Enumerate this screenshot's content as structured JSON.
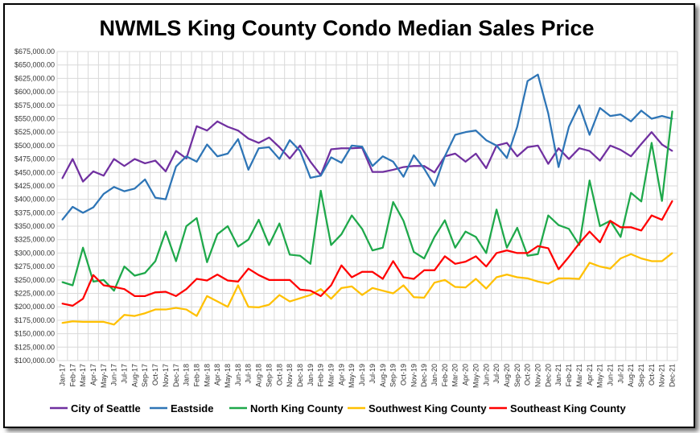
{
  "chart_data": {
    "type": "line",
    "title": "NWMLS King County Condo Median Sales Price",
    "xlabel": "",
    "ylabel": "",
    "ylim": [
      100000,
      675000
    ],
    "grid": true,
    "legend_position": "bottom",
    "y_ticks": [
      "$100,000.00",
      "$125,000.00",
      "$150,000.00",
      "$175,000.00",
      "$200,000.00",
      "$225,000.00",
      "$250,000.00",
      "$275,000.00",
      "$300,000.00",
      "$325,000.00",
      "$350,000.00",
      "$375,000.00",
      "$400,000.00",
      "$425,000.00",
      "$450,000.00",
      "$475,000.00",
      "$500,000.00",
      "$525,000.00",
      "$550,000.00",
      "$575,000.00",
      "$600,000.00",
      "$625,000.00",
      "$650,000.00",
      "$675,000.00"
    ],
    "categories": [
      "Jan-17",
      "Feb-17",
      "Mar-17",
      "Apr-17",
      "May-17",
      "Jun-17",
      "Jul-17",
      "Aug-17",
      "Sep-17",
      "Oct-17",
      "Nov-17",
      "Dec-17",
      "Jan-18",
      "Feb-18",
      "Mar-18",
      "Apr-18",
      "May-18",
      "Jun-18",
      "Jul-18",
      "Aug-18",
      "Sep-18",
      "Oct-18",
      "Nov-18",
      "Dec-18",
      "Jan-19",
      "Feb-19",
      "Mar-19",
      "Apr-19",
      "May-19",
      "Jun-19",
      "Jul-19",
      "Aug-19",
      "Sep-19",
      "Oct-19",
      "Nov-19",
      "Dec-19",
      "Jan-20",
      "Feb-20",
      "Mar-20",
      "Apr-20",
      "May-20",
      "Jun-20",
      "Jul-20",
      "Aug-20",
      "Sep-20",
      "Oct-20",
      "Nov-20",
      "Dec-20",
      "Jan-21",
      "Feb-21",
      "Mar-21",
      "Apr-21",
      "May-21",
      "Jun-21",
      "Jul-21",
      "Aug-21",
      "Sep-21",
      "Oct-21",
      "Nov-21",
      "Dec-21"
    ],
    "series": [
      {
        "name": "City of Seattle",
        "color": "#7030A0",
        "values": [
          439000,
          475000,
          433000,
          452000,
          444000,
          475000,
          462000,
          475000,
          467000,
          472000,
          452000,
          490000,
          476000,
          536000,
          528000,
          545000,
          535000,
          528000,
          513000,
          505000,
          515000,
          497000,
          476000,
          500000,
          470000,
          445000,
          493000,
          495000,
          495000,
          496000,
          451000,
          451000,
          455000,
          460000,
          462000,
          462000,
          450000,
          480000,
          485000,
          470000,
          485000,
          458000,
          500000,
          505000,
          480000,
          497000,
          500000,
          466000,
          495000,
          475000,
          495000,
          490000,
          472000,
          500000,
          492000,
          480000,
          503000,
          525000,
          502000,
          490000
        ]
      },
      {
        "name": "Eastside",
        "color": "#2E75B6",
        "values": [
          362000,
          386000,
          375000,
          385000,
          410000,
          423000,
          415000,
          420000,
          437000,
          403000,
          400000,
          461000,
          480000,
          470000,
          502000,
          480000,
          485000,
          512000,
          455000,
          495000,
          497000,
          475000,
          510000,
          490000,
          440000,
          444000,
          478000,
          468000,
          500000,
          498000,
          462000,
          480000,
          470000,
          442000,
          482000,
          457000,
          425000,
          480000,
          520000,
          525000,
          528000,
          510000,
          500000,
          477000,
          535000,
          620000,
          632000,
          560000,
          460000,
          535000,
          575000,
          520000,
          570000,
          555000,
          558000,
          545000,
          565000,
          550000,
          555000,
          550000
        ]
      },
      {
        "name": "North King County",
        "color": "#1EA84A",
        "values": [
          246000,
          240000,
          310000,
          247000,
          250000,
          230000,
          275000,
          258000,
          263000,
          285000,
          340000,
          285000,
          350000,
          365000,
          283000,
          335000,
          350000,
          312000,
          325000,
          362000,
          315000,
          355000,
          297000,
          295000,
          280000,
          416000,
          315000,
          335000,
          370000,
          345000,
          305000,
          310000,
          395000,
          360000,
          302000,
          290000,
          330000,
          361000,
          310000,
          340000,
          330000,
          300000,
          381000,
          310000,
          347000,
          295000,
          298000,
          370000,
          352000,
          345000,
          315000,
          435000,
          350000,
          360000,
          330000,
          412000,
          396000,
          505000,
          397000,
          564000
        ]
      },
      {
        "name": "Southwest King County",
        "color": "#FFC000",
        "values": [
          170000,
          173000,
          172000,
          172000,
          172000,
          167000,
          185000,
          183000,
          188000,
          195000,
          195000,
          198000,
          195000,
          183000,
          220000,
          210000,
          200000,
          240000,
          200000,
          199000,
          204000,
          222000,
          210000,
          216000,
          222000,
          233000,
          215000,
          235000,
          238000,
          222000,
          235000,
          230000,
          225000,
          240000,
          218000,
          217000,
          245000,
          250000,
          237000,
          236000,
          252000,
          234000,
          255000,
          260000,
          255000,
          253000,
          247000,
          243000,
          253000,
          253000,
          252000,
          282000,
          275000,
          271000,
          290000,
          298000,
          290000,
          285000,
          285000,
          300000
        ]
      },
      {
        "name": "Southeast King County",
        "color": "#FF0000",
        "values": [
          206000,
          202000,
          215000,
          259000,
          240000,
          237000,
          233000,
          220000,
          220000,
          227000,
          228000,
          220000,
          233000,
          252000,
          249000,
          260000,
          249000,
          247000,
          271000,
          259000,
          250000,
          250000,
          250000,
          232000,
          230000,
          220000,
          240000,
          277000,
          255000,
          265000,
          265000,
          252000,
          285000,
          255000,
          252000,
          268000,
          268000,
          294000,
          280000,
          284000,
          294000,
          275000,
          300000,
          305000,
          300000,
          300000,
          313000,
          309000,
          270000,
          293000,
          318000,
          340000,
          320000,
          360000,
          348000,
          348000,
          342000,
          370000,
          362000,
          397000
        ]
      }
    ]
  }
}
